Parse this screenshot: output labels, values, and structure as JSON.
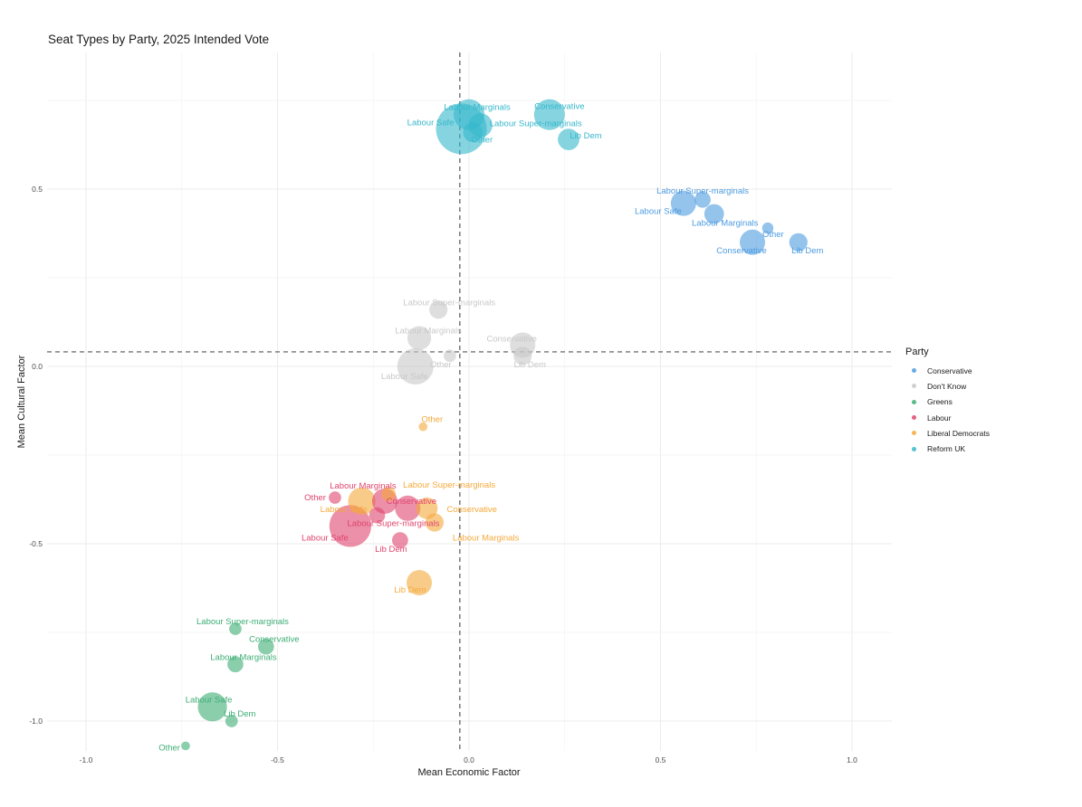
{
  "chart_data": {
    "type": "scatter",
    "title": "Seat Types by Party, 2025 Intended Vote",
    "xlabel": "Mean Economic Factor",
    "ylabel": "Mean Cultural Factor",
    "xlim": [
      -1.1,
      1.1
    ],
    "ylim": [
      -1.09,
      0.9
    ],
    "x_ticks": [
      -1.0,
      -0.5,
      0.0,
      0.5,
      1.0
    ],
    "x_tick_labels": [
      "-1.0",
      "-0.5",
      "0.0",
      "0.5",
      "1.0"
    ],
    "y_ticks": [
      -1.0,
      -0.5,
      0.0,
      0.5
    ],
    "y_tick_labels": [
      "-1.0",
      "-0.5",
      "0.0",
      "0.5"
    ],
    "grid": true,
    "reference_lines": {
      "vertical_x": -0.024,
      "horizontal_y": 0.041,
      "style": "dashed"
    },
    "legend": {
      "title": "Party",
      "position": "right"
    },
    "size_note": "bubble size is relative weight (area-proportional), no size legend shown",
    "series": [
      {
        "name": "Conservative",
        "color": "#4C9BE0",
        "points": [
          {
            "label": "Labour Super-marginals",
            "x": 0.61,
            "y": 0.47,
            "size": 10
          },
          {
            "label": "Labour Safe",
            "x": 0.56,
            "y": 0.46,
            "size": 25
          },
          {
            "label": "Labour Marginals",
            "x": 0.64,
            "y": 0.43,
            "size": 15
          },
          {
            "label": "Other",
            "x": 0.78,
            "y": 0.39,
            "size": 5
          },
          {
            "label": "Conservative",
            "x": 0.74,
            "y": 0.35,
            "size": 25
          },
          {
            "label": "Lib Dem",
            "x": 0.86,
            "y": 0.35,
            "size": 13
          }
        ]
      },
      {
        "name": "Don't Know",
        "color": "#C8C8C8",
        "points": [
          {
            "label": "Labour Super-marginals",
            "x": -0.08,
            "y": 0.16,
            "size": 13
          },
          {
            "label": "Labour Marginals",
            "x": -0.13,
            "y": 0.08,
            "size": 22
          },
          {
            "label": "Other",
            "x": -0.05,
            "y": 0.03,
            "size": 6
          },
          {
            "label": "Labour Safe",
            "x": -0.14,
            "y": 0.0,
            "size": 51
          },
          {
            "label": "Conservative",
            "x": 0.14,
            "y": 0.06,
            "size": 25
          },
          {
            "label": "Lib Dem",
            "x": 0.14,
            "y": 0.03,
            "size": 13
          }
        ]
      },
      {
        "name": "Greens",
        "color": "#3DAE75",
        "points": [
          {
            "label": "Labour Super-marginals",
            "x": -0.61,
            "y": -0.74,
            "size": 6
          },
          {
            "label": "Conservative",
            "x": -0.53,
            "y": -0.79,
            "size": 10
          },
          {
            "label": "Labour Marginals",
            "x": -0.61,
            "y": -0.84,
            "size": 10
          },
          {
            "label": "Labour Safe",
            "x": -0.67,
            "y": -0.96,
            "size": 33
          },
          {
            "label": "Lib Dem",
            "x": -0.62,
            "y": -1.0,
            "size": 6
          },
          {
            "label": "Other",
            "x": -0.74,
            "y": -1.07,
            "size": 3
          }
        ]
      },
      {
        "name": "Labour",
        "color": "#E0456E",
        "points": [
          {
            "label": "Other",
            "x": -0.35,
            "y": -0.37,
            "size": 6
          },
          {
            "label": "Labour Marginals",
            "x": -0.22,
            "y": -0.38,
            "size": 25
          },
          {
            "label": "Conservative",
            "x": -0.16,
            "y": -0.4,
            "size": 25
          },
          {
            "label": "Labour Super-marginals",
            "x": -0.24,
            "y": -0.42,
            "size": 10
          },
          {
            "label": "Labour Safe",
            "x": -0.31,
            "y": -0.45,
            "size": 68
          },
          {
            "label": "Lib Dem",
            "x": -0.18,
            "y": -0.49,
            "size": 10
          }
        ]
      },
      {
        "name": "Liberal Democrats",
        "color": "#F5A93A",
        "points": [
          {
            "label": "Other",
            "x": -0.12,
            "y": -0.17,
            "size": 3
          },
          {
            "label": "Labour Safe",
            "x": -0.28,
            "y": -0.38,
            "size": 29
          },
          {
            "label": "Labour Super-marginals",
            "x": -0.21,
            "y": -0.36,
            "size": 8
          },
          {
            "label": "Conservative",
            "x": -0.11,
            "y": -0.4,
            "size": 18
          },
          {
            "label": "Labour Marginals",
            "x": -0.09,
            "y": -0.44,
            "size": 13
          },
          {
            "label": "Lib Dem",
            "x": -0.13,
            "y": -0.61,
            "size": 25
          }
        ]
      },
      {
        "name": "Reform UK",
        "color": "#36B7CC",
        "points": [
          {
            "label": "Labour Safe",
            "x": -0.02,
            "y": 0.67,
            "size": 100
          },
          {
            "label": "Labour Marginals",
            "x": 0.0,
            "y": 0.71,
            "size": 37
          },
          {
            "label": "Labour Super-marginals",
            "x": 0.03,
            "y": 0.68,
            "size": 22
          },
          {
            "label": "Other",
            "x": 0.01,
            "y": 0.66,
            "size": 15
          },
          {
            "label": "Conservative",
            "x": 0.21,
            "y": 0.71,
            "size": 37
          },
          {
            "label": "Lib Dem",
            "x": 0.26,
            "y": 0.64,
            "size": 18
          }
        ]
      }
    ]
  }
}
